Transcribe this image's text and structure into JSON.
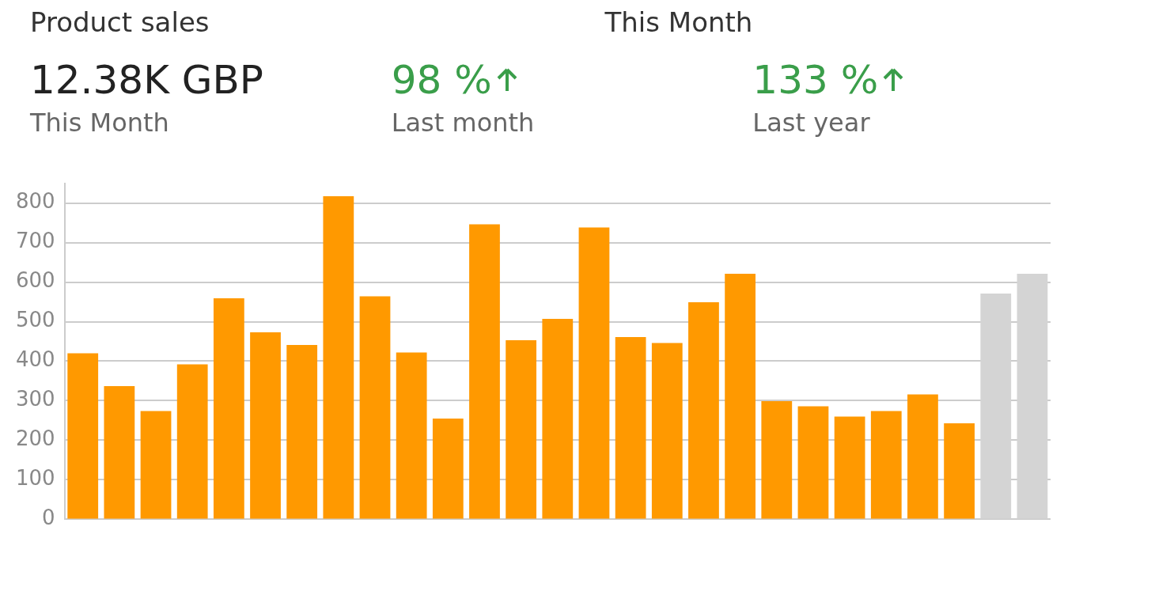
{
  "chart_data": {
    "type": "bar",
    "title": "Product sales",
    "subtitle": "This Month",
    "annotations": [
      "12.38K GBP",
      "This Month",
      "98 %",
      "Last month",
      "133 %",
      "Last year"
    ],
    "categories": [
      null,
      null,
      null,
      null,
      null,
      null,
      null,
      null,
      null,
      null,
      null,
      null,
      null,
      null,
      null,
      null,
      null,
      null,
      null,
      null,
      null,
      null,
      null,
      null,
      null,
      null,
      null
    ],
    "values": [
      420,
      337,
      274,
      392,
      559,
      473,
      441,
      817,
      564,
      422,
      255,
      746,
      453,
      507,
      738,
      461,
      446,
      549,
      621,
      299,
      286,
      260,
      274,
      316,
      243,
      571,
      621
    ],
    "colors": [
      "#ff9900",
      "#ff9900",
      "#ff9900",
      "#ff9900",
      "#ff9900",
      "#ff9900",
      "#ff9900",
      "#ff9900",
      "#ff9900",
      "#ff9900",
      "#ff9900",
      "#ff9900",
      "#ff9900",
      "#ff9900",
      "#ff9900",
      "#ff9900",
      "#ff9900",
      "#ff9900",
      "#ff9900",
      "#ff9900",
      "#ff9900",
      "#ff9900",
      "#ff9900",
      "#ff9900",
      "#ff9900",
      "#d4d4d4",
      "#d4d4d4"
    ],
    "ylim": [
      0,
      850
    ],
    "yticks": [
      0,
      100,
      200,
      300,
      400,
      500,
      600,
      700,
      800
    ],
    "grid": "y",
    "legend": false,
    "tick_labels": "y"
  }
}
